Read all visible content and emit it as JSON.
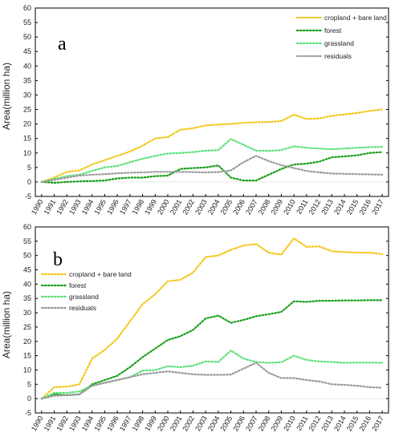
{
  "chart_data": [
    {
      "type": "line",
      "panel_label": "a",
      "ylabel": "Area(million ha)",
      "xlabel": "",
      "ylim": [
        -5,
        60
      ],
      "yticks": [
        -5,
        0,
        5,
        10,
        15,
        20,
        25,
        30,
        35,
        40,
        45,
        50,
        55,
        60
      ],
      "x": [
        1990,
        1991,
        1992,
        1993,
        1994,
        1995,
        1996,
        1997,
        1998,
        1999,
        2000,
        2001,
        2002,
        2003,
        2004,
        2005,
        2006,
        2007,
        2008,
        2009,
        2010,
        2011,
        2012,
        2013,
        2014,
        2015,
        2016,
        2017
      ],
      "legend_position": "top-right",
      "series": [
        {
          "name": "cropland + bare land",
          "color": "#f5c518",
          "values": [
            0,
            1.5,
            3.5,
            4,
            6,
            7.5,
            9,
            10.5,
            12.5,
            15,
            15.5,
            18,
            18.5,
            19.5,
            19.8,
            20,
            20.4,
            20.6,
            20.7,
            21,
            23.2,
            21.7,
            21.9,
            22.8,
            23.3,
            23.8,
            24.5,
            25
          ]
        },
        {
          "name": "forest",
          "color": "#1a9e1a",
          "values": [
            0,
            -0.3,
            0,
            0.2,
            0.3,
            0.5,
            1.2,
            1.5,
            1.5,
            2,
            2.2,
            4.5,
            4.8,
            5,
            5.7,
            1.5,
            0.5,
            0.5,
            2.5,
            4.5,
            6,
            6.3,
            7,
            8.5,
            8.8,
            9.2,
            10,
            10.3
          ]
        },
        {
          "name": "grassland",
          "color": "#5ee17a",
          "values": [
            0,
            1,
            2,
            2.5,
            3.8,
            5,
            5.5,
            6.8,
            8,
            9,
            9.8,
            10,
            10.3,
            10.8,
            11,
            14.8,
            12.8,
            10.8,
            10.7,
            11,
            12.3,
            11.8,
            11.5,
            11.3,
            11.5,
            11.8,
            12,
            12.1
          ]
        },
        {
          "name": "residuals",
          "color": "#9a9a9a",
          "values": [
            0,
            0.7,
            1.5,
            2.2,
            2.5,
            2.7,
            3,
            3.2,
            3.3,
            3.5,
            3.5,
            3.5,
            3.4,
            3.3,
            3.4,
            4,
            6.8,
            9,
            7.2,
            5.8,
            4.8,
            3.8,
            3.3,
            2.9,
            2.8,
            2.7,
            2.6,
            2.5
          ]
        }
      ]
    },
    {
      "type": "line",
      "panel_label": "b",
      "ylabel": "Area(million ha)",
      "xlabel": "",
      "ylim": [
        -5,
        60
      ],
      "yticks": [
        -5,
        0,
        5,
        10,
        15,
        20,
        25,
        30,
        35,
        40,
        45,
        50,
        55,
        60
      ],
      "x": [
        1990,
        1991,
        1992,
        1993,
        1994,
        1995,
        1996,
        1997,
        1998,
        1999,
        2000,
        2001,
        2002,
        2003,
        2004,
        2005,
        2006,
        2007,
        2008,
        2009,
        2010,
        2011,
        2012,
        2013,
        2014,
        2015,
        2016,
        2017
      ],
      "legend_position": "top-left",
      "series": [
        {
          "name": "cropland + bare land",
          "color": "#f5c518",
          "values": [
            0,
            4,
            4.2,
            5,
            14,
            17,
            21,
            27,
            33,
            36.5,
            41,
            41.5,
            44,
            49.5,
            50,
            52,
            53.5,
            54,
            51,
            50.3,
            56,
            53,
            53.2,
            51.5,
            51.2,
            51,
            51,
            50.5
          ]
        },
        {
          "name": "forest",
          "color": "#1a9e1a",
          "values": [
            0,
            1.5,
            1.2,
            1.5,
            5,
            6.5,
            8,
            11,
            14.5,
            17.5,
            20.5,
            21.8,
            24,
            28,
            29,
            26.5,
            27.5,
            28.8,
            29.5,
            30.3,
            34,
            33.8,
            34.2,
            34.2,
            34.3,
            34.3,
            34.4,
            34.4
          ]
        },
        {
          "name": "grassland",
          "color": "#5ee17a",
          "values": [
            0,
            2,
            2,
            2.5,
            4.5,
            5.5,
            6.5,
            7.5,
            9.8,
            10,
            11.3,
            11,
            11.5,
            13,
            12.8,
            16.8,
            14,
            12.8,
            12.5,
            12.7,
            15,
            13.5,
            13,
            12.8,
            12.5,
            12.6,
            12.6,
            12.5
          ]
        },
        {
          "name": "residuals",
          "color": "#9a9a9a",
          "values": [
            0,
            1,
            1.2,
            1.5,
            4.5,
            5.5,
            6.5,
            7.5,
            8.5,
            9,
            9.5,
            9,
            8.5,
            8.3,
            8.3,
            8.4,
            10.5,
            12.5,
            9,
            7.2,
            7.2,
            6.5,
            6,
            5,
            4.8,
            4.5,
            4,
            3.8
          ]
        }
      ]
    }
  ]
}
